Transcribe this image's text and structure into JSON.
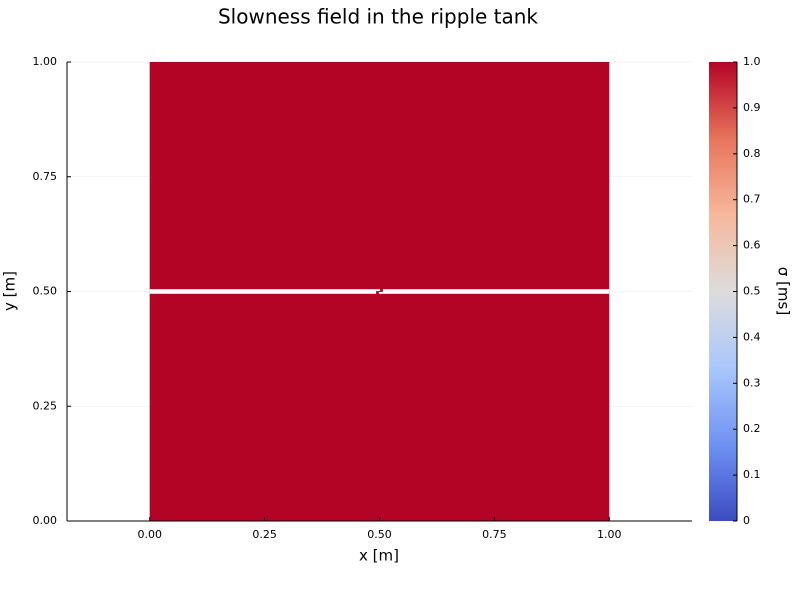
{
  "chart_data": {
    "type": "heatmap",
    "title": "Slowness field in the ripple tank",
    "xlabel": "x [m]",
    "ylabel": "y [m]",
    "xlim": [
      -0.18,
      1.18
    ],
    "ylim": [
      0,
      1
    ],
    "x_ticks": [
      "0.00",
      "0.25",
      "0.50",
      "0.75",
      "1.00"
    ],
    "y_ticks": [
      "0.00",
      "0.25",
      "0.50",
      "0.75",
      "1.00"
    ],
    "grid": true,
    "field_extent": {
      "x": [
        0,
        1
      ],
      "y": [
        0,
        1
      ]
    },
    "field_value": 1.0,
    "barrier": {
      "y": 0.5,
      "thickness": 0.01,
      "value": 0.0,
      "slit_x": [
        0.497,
        0.503
      ]
    },
    "colorbar": {
      "label": "σ [ms]",
      "range": [
        0,
        1
      ],
      "colormap": "coolwarm",
      "ticks": [
        "0",
        "0.1",
        "0.2",
        "0.3",
        "0.4",
        "0.5",
        "0.6",
        "0.7",
        "0.8",
        "0.9",
        "1.0"
      ],
      "colors": [
        "#3b4cc0",
        "#6f92f3",
        "#aac7fd",
        "#dddcdc",
        "#f7b89c",
        "#e7745b",
        "#b40426"
      ]
    },
    "field_color": "#b40426",
    "barrier_color": "#ffffff"
  }
}
